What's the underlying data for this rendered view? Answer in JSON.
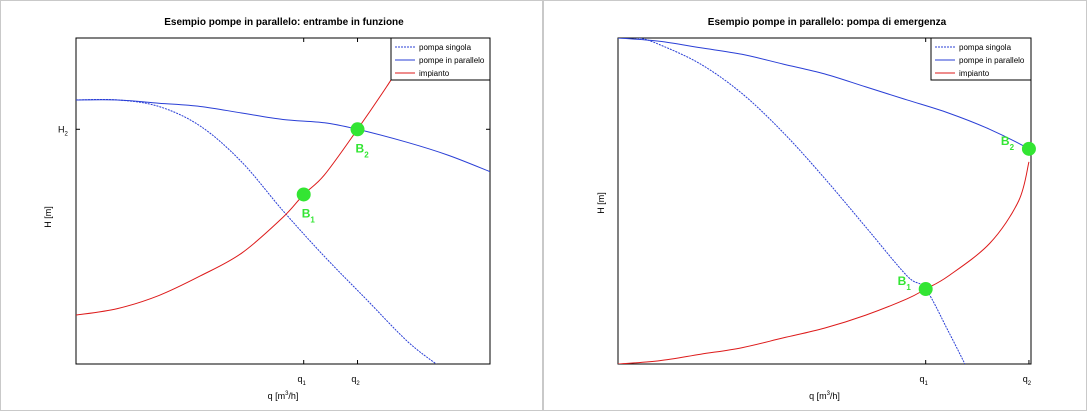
{
  "chart_data": [
    {
      "type": "line",
      "title": "Esempio pompe in parallelo: entrambe in funzione",
      "xlabel": "q [m3/h]",
      "ylabel": "H [m]",
      "x_ticks": [
        {
          "main": "q",
          "sub": "1",
          "x": 0.55
        },
        {
          "main": "q",
          "sub": "2",
          "x": 0.68
        }
      ],
      "y_ticks": [
        {
          "main": "H",
          "sub": "2",
          "y": 0.72
        }
      ],
      "xlim": [
        0,
        1
      ],
      "ylim": [
        0,
        1
      ],
      "legend": {
        "position": "top-right",
        "items": [
          {
            "label": "pompa singola",
            "color": "#2a3fd6",
            "style": "dashed"
          },
          {
            "label": "pompe in parallelo",
            "color": "#2a3fd6",
            "style": "solid"
          },
          {
            "label": "impianto",
            "color": "#dd1a1a",
            "style": "solid"
          }
        ]
      },
      "series": [
        {
          "name": "pompa singola",
          "color": "#2a3fd6",
          "style": "dashed",
          "x": [
            0,
            0.1,
            0.2,
            0.3,
            0.4,
            0.5,
            0.6,
            0.7,
            0.8,
            0.87
          ],
          "y": [
            0.81,
            0.81,
            0.79,
            0.73,
            0.62,
            0.47,
            0.33,
            0.2,
            0.07,
            0.0
          ]
        },
        {
          "name": "pompe in parallelo",
          "color": "#2a3fd6",
          "style": "solid",
          "x": [
            0,
            0.1,
            0.2,
            0.3,
            0.4,
            0.5,
            0.6,
            0.68,
            0.8,
            0.9,
            1.0
          ],
          "y": [
            0.81,
            0.81,
            0.8,
            0.79,
            0.77,
            0.75,
            0.74,
            0.72,
            0.68,
            0.64,
            0.59
          ]
        },
        {
          "name": "impianto",
          "color": "#dd1a1a",
          "style": "solid",
          "x": [
            0,
            0.1,
            0.2,
            0.3,
            0.4,
            0.5,
            0.55,
            0.6,
            0.68,
            0.75,
            0.8
          ],
          "y": [
            0.15,
            0.17,
            0.21,
            0.27,
            0.34,
            0.45,
            0.52,
            0.58,
            0.72,
            0.85,
            0.95
          ]
        }
      ],
      "points": [
        {
          "label": "B",
          "sub": "1",
          "x": 0.55,
          "y": 0.52,
          "color": "#33e533"
        },
        {
          "label": "B",
          "sub": "2",
          "x": 0.68,
          "y": 0.72,
          "color": "#33e533"
        }
      ]
    },
    {
      "type": "line",
      "title": "Esempio pompe in parallelo: pompa di emergenza",
      "xlabel": "q [m3/h]",
      "ylabel": "H [m]",
      "x_ticks": [
        {
          "main": "q",
          "sub": "1",
          "x": 0.745
        },
        {
          "main": "q",
          "sub": "2",
          "x": 0.995
        }
      ],
      "y_ticks": [],
      "xlim": [
        0,
        1
      ],
      "ylim": [
        0,
        1
      ],
      "legend": {
        "position": "top-right",
        "items": [
          {
            "label": "pompa singola",
            "color": "#2a3fd6",
            "style": "dashed"
          },
          {
            "label": "pompe in parallelo",
            "color": "#2a3fd6",
            "style": "solid"
          },
          {
            "label": "impianto",
            "color": "#dd1a1a",
            "style": "solid"
          }
        ]
      },
      "series": [
        {
          "name": "pompa singola",
          "color": "#2a3fd6",
          "style": "dashed",
          "x": [
            0,
            0.05,
            0.1,
            0.2,
            0.3,
            0.4,
            0.5,
            0.6,
            0.7,
            0.745,
            0.8,
            0.84
          ],
          "y": [
            1.0,
            1.0,
            0.98,
            0.92,
            0.83,
            0.71,
            0.57,
            0.42,
            0.27,
            0.23,
            0.1,
            0.0
          ]
        },
        {
          "name": "pompe in parallelo",
          "color": "#2a3fd6",
          "style": "solid",
          "x": [
            0,
            0.1,
            0.2,
            0.3,
            0.4,
            0.5,
            0.6,
            0.7,
            0.8,
            0.9,
            0.995,
            1.0
          ],
          "y": [
            1.0,
            0.99,
            0.97,
            0.95,
            0.92,
            0.89,
            0.85,
            0.81,
            0.77,
            0.72,
            0.66,
            0.65
          ]
        },
        {
          "name": "impianto",
          "color": "#dd1a1a",
          "style": "solid",
          "x": [
            0,
            0.1,
            0.2,
            0.3,
            0.4,
            0.5,
            0.6,
            0.7,
            0.745,
            0.8,
            0.9,
            0.97,
            0.995
          ],
          "y": [
            0.0,
            0.01,
            0.03,
            0.05,
            0.08,
            0.11,
            0.15,
            0.2,
            0.23,
            0.27,
            0.37,
            0.5,
            0.62
          ]
        }
      ],
      "points": [
        {
          "label": "B",
          "sub": "1",
          "x": 0.745,
          "y": 0.23,
          "color": "#33e533"
        },
        {
          "label": "B",
          "sub": "2",
          "x": 0.995,
          "y": 0.66,
          "color": "#33e533"
        }
      ]
    }
  ]
}
